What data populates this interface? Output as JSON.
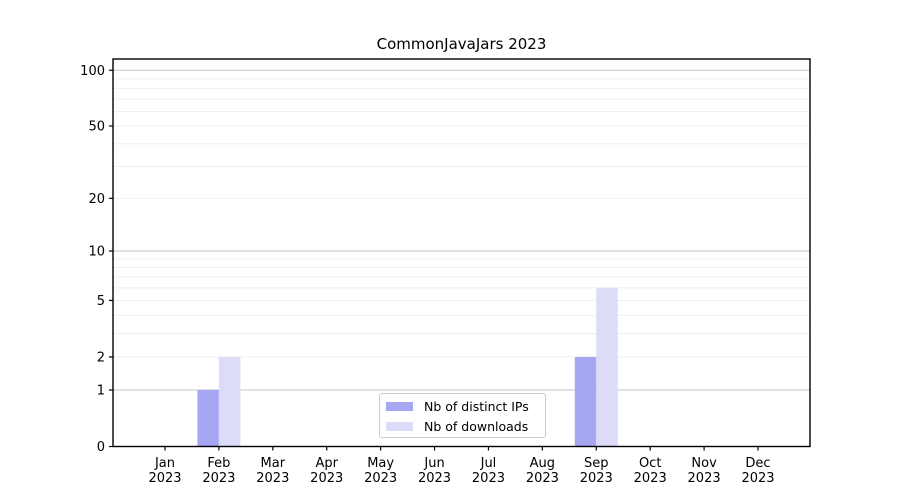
{
  "title": "CommonJavaJars 2023",
  "chart_data": {
    "type": "bar",
    "title": "CommonJavaJars 2023",
    "xlabel": "",
    "ylabel": "",
    "categories": [
      [
        "Jan",
        "2023"
      ],
      [
        "Feb",
        "2023"
      ],
      [
        "Mar",
        "2023"
      ],
      [
        "Apr",
        "2023"
      ],
      [
        "May",
        "2023"
      ],
      [
        "Jun",
        "2023"
      ],
      [
        "Jul",
        "2023"
      ],
      [
        "Aug",
        "2023"
      ],
      [
        "Sep",
        "2023"
      ],
      [
        "Oct",
        "2023"
      ],
      [
        "Nov",
        "2023"
      ],
      [
        "Dec",
        "2023"
      ]
    ],
    "series": [
      {
        "name": "Nb of distinct IPs",
        "color": "#a6a6f2",
        "values": [
          0,
          1,
          0,
          0,
          0,
          0,
          0,
          0,
          2,
          0,
          0,
          0
        ]
      },
      {
        "name": "Nb of downloads",
        "color": "#dcdcf8",
        "values": [
          0,
          2,
          0,
          0,
          0,
          0,
          0,
          0,
          6,
          0,
          0,
          0
        ]
      }
    ],
    "yscale": "log1p",
    "ylim": [
      0,
      115
    ],
    "y_tick_values": [
      0,
      1,
      2,
      5,
      10,
      20,
      50,
      100
    ],
    "y_tick_labels": [
      "0",
      "1",
      "2",
      "5",
      "10",
      "20",
      "50",
      "100"
    ],
    "y_major_grid": [
      1,
      10,
      100
    ],
    "y_minor_grid": [
      2,
      3,
      4,
      5,
      6,
      7,
      8,
      9,
      20,
      30,
      40,
      50,
      60,
      70,
      80,
      90
    ],
    "grid": true,
    "legend_position": "lower center",
    "colors": {
      "background": "#ffffff",
      "axis": "#000000",
      "major_grid": "#c6c6c6",
      "minor_grid": "#ededed",
      "legend_border": "#cccccc"
    }
  }
}
